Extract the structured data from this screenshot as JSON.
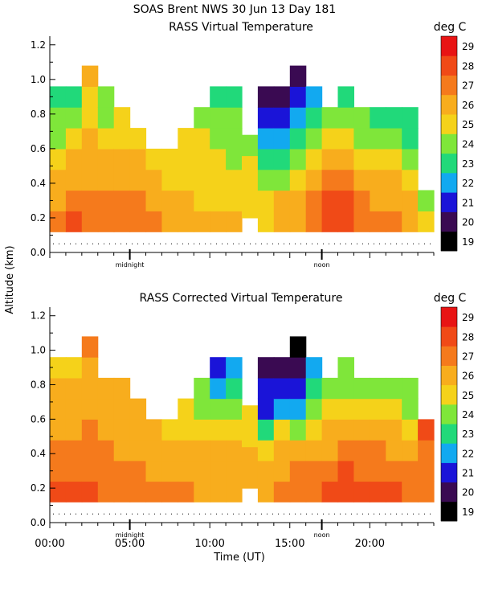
{
  "title_line1": "SOAS Brent NWS  30 Jun 13 Day 181",
  "ylabel": "Altitude (km)",
  "xlabel": "Time (UT)",
  "units": "deg C",
  "colorbar": {
    "values": [
      19,
      20,
      21,
      22,
      23,
      24,
      25,
      26,
      27,
      28,
      29
    ],
    "colors": [
      "#000000",
      "#3a0a52",
      "#1a14d8",
      "#12a9f0",
      "#21d97a",
      "#7fe63a",
      "#f5d21a",
      "#f8ad1d",
      "#f57a1c",
      "#f04a17",
      "#e81414"
    ]
  },
  "x_ticks": [
    "00:00",
    "05:00",
    "10:00",
    "15:00",
    "20:00"
  ],
  "y_ticks": [
    "0.0",
    "0.2",
    "0.4",
    "0.6",
    "0.8",
    "1.0",
    "1.2"
  ],
  "markers": {
    "midnight": "midnight",
    "noon": "noon"
  },
  "chart_data": [
    {
      "type": "heatmap",
      "title": "RASS Virtual Temperature",
      "xlabel": "",
      "ylabel": "Altitude (km)",
      "xlim": [
        0,
        24
      ],
      "ylim": [
        0,
        1.25
      ],
      "colorbar_range": [
        19,
        29
      ],
      "midnight_marker_hour": 5,
      "noon_marker_hour": 17,
      "profiles": [
        {
          "t": 0,
          "y0": 0.12,
          "v": [
            27,
            26,
            26,
            25,
            24,
            24,
            23
          ]
        },
        {
          "t": 1,
          "y0": 0.12,
          "v": [
            28,
            27,
            26,
            26,
            25,
            24,
            23
          ]
        },
        {
          "t": 2,
          "y0": 0.12,
          "v": [
            27,
            27,
            26,
            26,
            26,
            25,
            25,
            26
          ]
        },
        {
          "t": 3,
          "y0": 0.12,
          "v": [
            27,
            27,
            26,
            26,
            25,
            24,
            24
          ]
        },
        {
          "t": 4,
          "y0": 0.12,
          "v": [
            27,
            27,
            26,
            26,
            25,
            25
          ]
        },
        {
          "t": 5,
          "y0": 0.12,
          "v": [
            27,
            27,
            26,
            26,
            25
          ]
        },
        {
          "t": 6,
          "y0": 0.12,
          "v": [
            27,
            26,
            26,
            25
          ]
        },
        {
          "t": 7,
          "y0": 0.12,
          "v": [
            26,
            26,
            25,
            25
          ]
        },
        {
          "t": 8,
          "y0": 0.12,
          "v": [
            26,
            26,
            25,
            25,
            25
          ]
        },
        {
          "t": 9,
          "y0": 0.12,
          "v": [
            26,
            25,
            25,
            25,
            25,
            24
          ]
        },
        {
          "t": 10,
          "y0": 0.12,
          "v": [
            26,
            25,
            25,
            25,
            24,
            24,
            23
          ]
        },
        {
          "t": 11,
          "y0": 0.12,
          "v": [
            26,
            25,
            25,
            24,
            24,
            24,
            23
          ]
        },
        {
          "t": 12,
          "y0": 0.2,
          "v": [
            25,
            25,
            25,
            24
          ]
        },
        {
          "t": 13,
          "y0": 0.12,
          "v": [
            25,
            25,
            24,
            23,
            22,
            21,
            20
          ]
        },
        {
          "t": 14,
          "y0": 0.12,
          "v": [
            26,
            26,
            24,
            23,
            22,
            21,
            20
          ]
        },
        {
          "t": 15,
          "y0": 0.12,
          "v": [
            26,
            26,
            25,
            24,
            23,
            22,
            21,
            20
          ]
        },
        {
          "t": 16,
          "y0": 0.12,
          "v": [
            27,
            27,
            26,
            25,
            24,
            23,
            22
          ]
        },
        {
          "t": 17,
          "y0": 0.12,
          "v": [
            28,
            28,
            27,
            26,
            25,
            24
          ]
        },
        {
          "t": 18,
          "y0": 0.12,
          "v": [
            28,
            28,
            27,
            26,
            25,
            24,
            23
          ]
        },
        {
          "t": 19,
          "y0": 0.12,
          "v": [
            27,
            27,
            26,
            25,
            24,
            24
          ]
        },
        {
          "t": 20,
          "y0": 0.12,
          "v": [
            27,
            26,
            26,
            25,
            24,
            23
          ]
        },
        {
          "t": 21,
          "y0": 0.12,
          "v": [
            27,
            26,
            26,
            25,
            24,
            23
          ]
        },
        {
          "t": 22,
          "y0": 0.12,
          "v": [
            26,
            26,
            25,
            24,
            23,
            23
          ]
        },
        {
          "t": 23,
          "y0": 0.12,
          "v": [
            25,
            24
          ]
        }
      ]
    },
    {
      "type": "heatmap",
      "title": "RASS Corrected Virtual Temperature",
      "xlabel": "Time (UT)",
      "ylabel": "Altitude (km)",
      "xlim": [
        0,
        24
      ],
      "ylim": [
        0,
        1.25
      ],
      "colorbar_range": [
        19,
        29
      ],
      "midnight_marker_hour": 5,
      "noon_marker_hour": 17,
      "profiles": [
        {
          "t": 0,
          "y0": 0.12,
          "v": [
            28,
            27,
            27,
            26,
            26,
            26,
            25
          ]
        },
        {
          "t": 1,
          "y0": 0.12,
          "v": [
            28,
            27,
            27,
            26,
            26,
            26,
            25
          ]
        },
        {
          "t": 2,
          "y0": 0.12,
          "v": [
            28,
            27,
            27,
            27,
            26,
            26,
            26,
            27
          ]
        },
        {
          "t": 3,
          "y0": 0.12,
          "v": [
            27,
            27,
            27,
            26,
            26,
            26
          ]
        },
        {
          "t": 4,
          "y0": 0.12,
          "v": [
            27,
            27,
            26,
            26,
            26,
            26
          ]
        },
        {
          "t": 5,
          "y0": 0.12,
          "v": [
            27,
            27,
            26,
            26,
            26
          ]
        },
        {
          "t": 6,
          "y0": 0.12,
          "v": [
            27,
            26,
            26,
            26
          ]
        },
        {
          "t": 7,
          "y0": 0.12,
          "v": [
            27,
            26,
            26,
            25
          ]
        },
        {
          "t": 8,
          "y0": 0.12,
          "v": [
            27,
            26,
            26,
            25,
            25
          ]
        },
        {
          "t": 9,
          "y0": 0.12,
          "v": [
            26,
            26,
            26,
            25,
            24,
            24
          ]
        },
        {
          "t": 10,
          "y0": 0.12,
          "v": [
            26,
            26,
            26,
            25,
            24,
            22,
            21
          ]
        },
        {
          "t": 11,
          "y0": 0.12,
          "v": [
            26,
            26,
            26,
            25,
            24,
            23,
            22
          ]
        },
        {
          "t": 12,
          "y0": 0.2,
          "v": [
            26,
            26,
            25,
            25
          ]
        },
        {
          "t": 13,
          "y0": 0.12,
          "v": [
            26,
            26,
            25,
            23,
            21,
            21,
            20
          ]
        },
        {
          "t": 14,
          "y0": 0.12,
          "v": [
            27,
            26,
            26,
            25,
            22,
            21,
            20
          ]
        },
        {
          "t": 15,
          "y0": 0.12,
          "v": [
            27,
            27,
            26,
            24,
            22,
            21,
            20,
            19
          ]
        },
        {
          "t": 16,
          "y0": 0.12,
          "v": [
            27,
            27,
            26,
            25,
            24,
            23,
            22
          ]
        },
        {
          "t": 17,
          "y0": 0.12,
          "v": [
            28,
            27,
            26,
            26,
            25,
            24
          ]
        },
        {
          "t": 18,
          "y0": 0.12,
          "v": [
            28,
            28,
            27,
            26,
            25,
            24,
            24
          ]
        },
        {
          "t": 19,
          "y0": 0.12,
          "v": [
            28,
            27,
            27,
            26,
            25,
            24
          ]
        },
        {
          "t": 20,
          "y0": 0.12,
          "v": [
            28,
            27,
            27,
            26,
            25,
            24
          ]
        },
        {
          "t": 21,
          "y0": 0.12,
          "v": [
            28,
            27,
            26,
            26,
            25,
            24
          ]
        },
        {
          "t": 22,
          "y0": 0.12,
          "v": [
            27,
            27,
            26,
            25,
            24,
            24
          ]
        },
        {
          "t": 23,
          "y0": 0.12,
          "v": [
            27,
            27,
            27,
            28
          ]
        }
      ]
    }
  ]
}
